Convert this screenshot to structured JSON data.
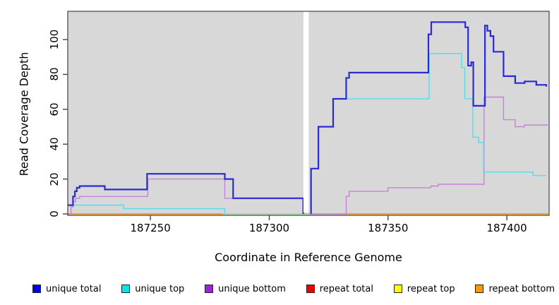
{
  "chart_data": {
    "type": "line",
    "subtype": "step-coverage",
    "title": "",
    "xlabel": "Coordinate in Reference Genome",
    "ylabel": "Read Coverage Depth",
    "xlim": [
      187215.2,
      187417.8
    ],
    "ylim": [
      0,
      116
    ],
    "xticks": [
      187250,
      187300,
      187350,
      187400
    ],
    "yticks": [
      0,
      20,
      40,
      60,
      80,
      100
    ],
    "grid": false,
    "legend_position": "bottom",
    "plot_bg": "#d8d8d8",
    "axis_color": "#444444",
    "gap_band": {
      "from": 187314.4,
      "to": 187316.6,
      "color": "#ffffff"
    },
    "baseline_overlay": {
      "from": 187280.5,
      "to": 187316.8,
      "value": 0,
      "color": "#9fdf9c"
    },
    "series": [
      {
        "name": "unique total",
        "line_color": "#2a2ad6",
        "legend_color": "#0000ee",
        "width": 2.2,
        "segments": [
          [
            [
              187215.2,
              5
            ],
            [
              187217.4,
              10
            ],
            [
              187218.2,
              13
            ],
            [
              187219,
              15
            ],
            [
              187220.2,
              16
            ],
            [
              187230.8,
              14
            ],
            [
              187248.6,
              23
            ],
            [
              187281.3,
              20
            ],
            [
              187284.8,
              9
            ],
            [
              187314.3,
              0
            ]
          ],
          [
            [
              187317.6,
              0
            ],
            [
              187317.6,
              26
            ],
            [
              187320.7,
              50
            ],
            [
              187326.9,
              66
            ],
            [
              187332.4,
              78
            ],
            [
              187333.6,
              81
            ],
            [
              187367,
              103
            ],
            [
              187368.2,
              110
            ],
            [
              187382.5,
              107
            ],
            [
              187383.7,
              85
            ],
            [
              187385,
              87
            ],
            [
              187385.9,
              62
            ],
            [
              187390.8,
              108
            ],
            [
              187391.8,
              105
            ],
            [
              187393.1,
              102
            ],
            [
              187394.4,
              93
            ],
            [
              187398.6,
              79
            ],
            [
              187403.5,
              75
            ],
            [
              187407.5,
              76
            ],
            [
              187412.4,
              74
            ],
            [
              187416.6,
              73
            ]
          ]
        ]
      },
      {
        "name": "unique top",
        "line_color": "#5cdfe9",
        "legend_color": "#00e5ee",
        "width": 1.6,
        "segments": [
          [
            [
              187215.2,
              5
            ],
            [
              187238.7,
              3
            ],
            [
              187281.3,
              0
            ]
          ],
          [
            [
              187317.6,
              0
            ],
            [
              187317.6,
              26
            ],
            [
              187320.7,
              50
            ],
            [
              187326.9,
              66
            ],
            [
              187367.3,
              92
            ],
            [
              187381,
              84
            ],
            [
              187382.3,
              66
            ],
            [
              187385.7,
              44
            ],
            [
              187388.1,
              41
            ],
            [
              187390.2,
              24
            ],
            [
              187411,
              22
            ],
            [
              187416.6,
              22
            ]
          ]
        ]
      },
      {
        "name": "unique bottom",
        "line_color": "#c583d8",
        "legend_color": "#a020e0",
        "width": 1.4,
        "segments": [
          [
            [
              187215.2,
              0
            ],
            [
              187216.6,
              4
            ],
            [
              187217.4,
              7
            ],
            [
              187218.5,
              9
            ],
            [
              187220.2,
              10
            ],
            [
              187248.9,
              20
            ],
            [
              187281.3,
              9
            ],
            [
              187314.3,
              0
            ]
          ],
          [
            [
              187316.8,
              0
            ],
            [
              187332.1,
              0
            ],
            [
              187332.4,
              10
            ],
            [
              187333.6,
              13
            ],
            [
              187350,
              15
            ],
            [
              187368,
              16
            ],
            [
              187371.2,
              17
            ],
            [
              187390.4,
              67
            ],
            [
              187398.6,
              54
            ],
            [
              187403.5,
              50
            ],
            [
              187407.5,
              51
            ],
            [
              187417.3,
              51
            ]
          ]
        ]
      },
      {
        "name": "repeat total",
        "line_color": "#ee2222",
        "legend_color": "#ee0000",
        "width": 1.2,
        "segments": [
          [
            [
              187215.2,
              0
            ],
            [
              187417.5,
              0
            ]
          ]
        ]
      },
      {
        "name": "repeat top",
        "line_color": "#f2f23a",
        "legend_color": "#ffff00",
        "width": 1.2,
        "segments": [
          [
            [
              187215.2,
              0
            ],
            [
              187417.5,
              0
            ]
          ]
        ]
      },
      {
        "name": "repeat bottom",
        "line_color": "#ff9d1e",
        "legend_color": "#ff9900",
        "width": 2,
        "segments": [
          [
            [
              187215.2,
              0
            ],
            [
              187280.5,
              0
            ]
          ],
          [
            [
              187332.1,
              0
            ],
            [
              187417.5,
              0
            ]
          ]
        ]
      }
    ]
  }
}
